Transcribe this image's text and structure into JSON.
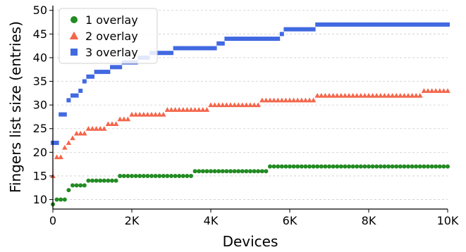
{
  "chart_data": {
    "type": "scatter",
    "xlabel": "Devices",
    "ylabel": "Fingers list size (entries)",
    "xlim": [
      0,
      10000
    ],
    "ylim": [
      8,
      51
    ],
    "x_ticks": [
      0,
      2000,
      4000,
      6000,
      8000,
      10000
    ],
    "x_tick_labels": [
      "0",
      "2K",
      "4K",
      "6K",
      "8K",
      "10K"
    ],
    "y_ticks": [
      10,
      15,
      20,
      25,
      30,
      35,
      40,
      45,
      50
    ],
    "y_tick_labels": [
      "10",
      "15",
      "20",
      "25",
      "30",
      "35",
      "40",
      "45",
      "50"
    ],
    "grid": "horizontal dashed",
    "legend_position": "top-left",
    "series": [
      {
        "name": "1 overlay",
        "marker": "circle",
        "color": "#228b22",
        "steps": [
          [
            0,
            9
          ],
          [
            100,
            10
          ],
          [
            200,
            10
          ],
          [
            330,
            12
          ],
          [
            430,
            13
          ],
          [
            900,
            14
          ],
          [
            1620,
            15
          ],
          [
            3600,
            16
          ],
          [
            5420,
            17
          ],
          [
            10000,
            17
          ]
        ]
      },
      {
        "name": "2 overlay",
        "marker": "triangle",
        "color": "#f4654a",
        "steps": [
          [
            0,
            15
          ],
          [
            100,
            19
          ],
          [
            230,
            21
          ],
          [
            330,
            22
          ],
          [
            430,
            23
          ],
          [
            520,
            24
          ],
          [
            820,
            25
          ],
          [
            1320,
            26
          ],
          [
            1650,
            27
          ],
          [
            1950,
            28
          ],
          [
            2850,
            29
          ],
          [
            3950,
            30
          ],
          [
            5270,
            31
          ],
          [
            6700,
            32
          ],
          [
            9350,
            33
          ],
          [
            10000,
            33
          ]
        ]
      },
      {
        "name": "3 overlay",
        "marker": "square",
        "color": "#4169e1",
        "steps": [
          [
            0,
            22
          ],
          [
            200,
            28
          ],
          [
            350,
            31
          ],
          [
            480,
            32
          ],
          [
            630,
            33
          ],
          [
            770,
            35
          ],
          [
            880,
            36
          ],
          [
            1020,
            37
          ],
          [
            1480,
            38
          ],
          [
            1780,
            39
          ],
          [
            2200,
            40
          ],
          [
            2450,
            41
          ],
          [
            3030,
            42
          ],
          [
            4100,
            42
          ],
          [
            4200,
            43
          ],
          [
            4350,
            44
          ],
          [
            5780,
            45
          ],
          [
            5880,
            46
          ],
          [
            6650,
            47
          ],
          [
            10000,
            47
          ]
        ]
      }
    ]
  }
}
